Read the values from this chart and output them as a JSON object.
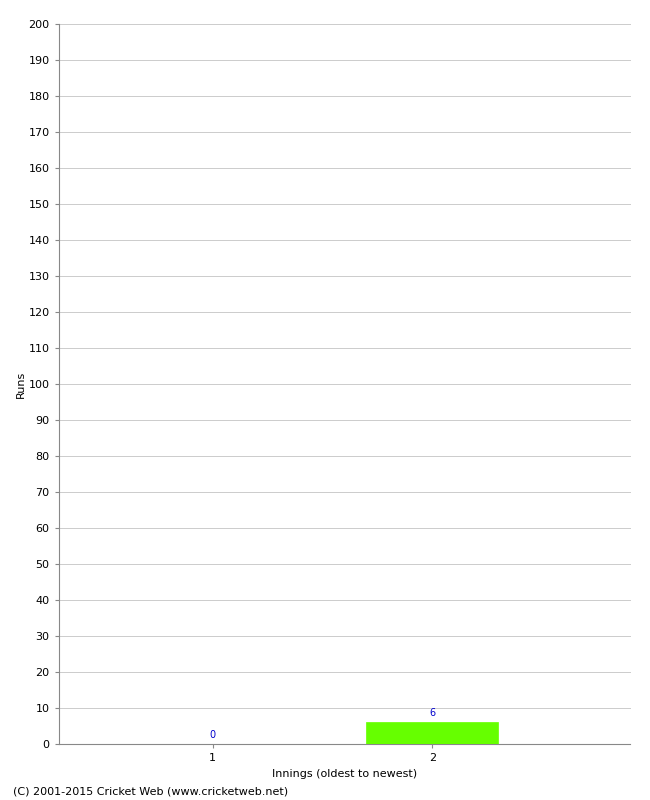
{
  "innings": [
    1,
    2
  ],
  "runs": [
    0,
    6
  ],
  "bar_color": "#66ff00",
  "bar_edge_color": "#66ff00",
  "annotation_color": "#0000cc",
  "annotation_fontsize": 7,
  "xlabel": "Innings (oldest to newest)",
  "ylabel": "Runs",
  "ylim": [
    0,
    200
  ],
  "yticks": [
    0,
    10,
    20,
    30,
    40,
    50,
    60,
    70,
    80,
    90,
    100,
    110,
    120,
    130,
    140,
    150,
    160,
    170,
    180,
    190,
    200
  ],
  "xticks": [
    1,
    2
  ],
  "grid_color": "#cccccc",
  "background_color": "#ffffff",
  "footer_text": "(C) 2001-2015 Cricket Web (www.cricketweb.net)",
  "footer_fontsize": 8,
  "bar_width": 0.6,
  "tick_fontsize": 8,
  "xlabel_fontsize": 8,
  "ylabel_fontsize": 8
}
